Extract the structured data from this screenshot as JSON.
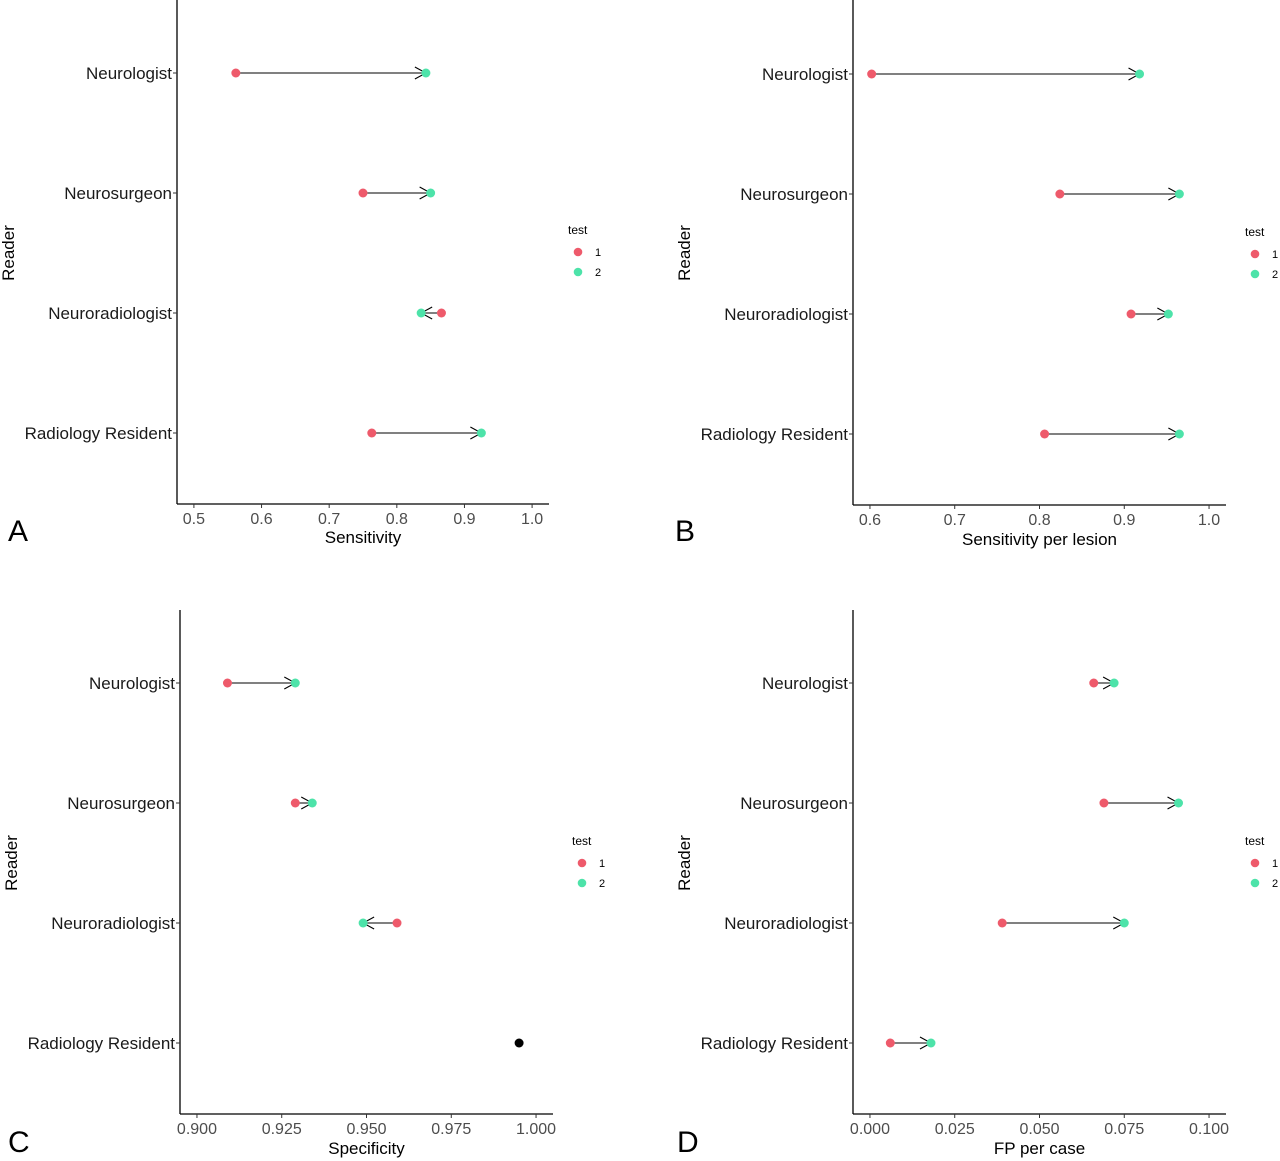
{
  "legend": {
    "title": "test",
    "items": [
      "1",
      "2"
    ]
  },
  "colors": {
    "test1": "#ee5a6b",
    "test2": "#4de3a9",
    "single": "#000000",
    "arrow": "#000000"
  },
  "chart_data": [
    {
      "panel": "A",
      "type": "scatter",
      "xlabel": "Sensitivity",
      "ylabel": "Reader",
      "xlim": [
        0.475,
        1.025
      ],
      "xticks": [
        0.5,
        0.6,
        0.7,
        0.8,
        0.9,
        1.0
      ],
      "xtick_labels": [
        "0.5",
        "0.6",
        "0.7",
        "0.8",
        "0.9",
        "1.0"
      ],
      "categories": [
        "Neurologist",
        "Neurosurgeon",
        "Neuroradiologist",
        "Radiology Resident"
      ],
      "series": [
        {
          "name": "1",
          "values": [
            0.562,
            0.75,
            0.866,
            0.763
          ]
        },
        {
          "name": "2",
          "values": [
            0.843,
            0.85,
            0.836,
            0.925
          ]
        }
      ]
    },
    {
      "panel": "B",
      "type": "scatter",
      "xlabel": "Sensitivity per lesion",
      "ylabel": "Reader",
      "xlim": [
        0.58,
        1.02
      ],
      "xticks": [
        0.6,
        0.7,
        0.8,
        0.9,
        1.0
      ],
      "xtick_labels": [
        "0.6",
        "0.7",
        "0.8",
        "0.9",
        "1.0"
      ],
      "categories": [
        "Neurologist",
        "Neurosurgeon",
        "Neuroradiologist",
        "Radiology Resident"
      ],
      "series": [
        {
          "name": "1",
          "values": [
            0.602,
            0.824,
            0.908,
            0.806
          ]
        },
        {
          "name": "2",
          "values": [
            0.918,
            0.965,
            0.952,
            0.965
          ]
        }
      ]
    },
    {
      "panel": "C",
      "type": "scatter",
      "xlabel": "Specificity",
      "ylabel": "Reader",
      "xlim": [
        0.895,
        1.005
      ],
      "xticks": [
        0.9,
        0.925,
        0.95,
        0.975,
        1.0
      ],
      "xtick_labels": [
        "0.900",
        "0.925",
        "0.950",
        "0.975",
        "1.000"
      ],
      "categories": [
        "Neurologist",
        "Neurosurgeon",
        "Neuroradiologist",
        "Radiology Resident"
      ],
      "series": [
        {
          "name": "1",
          "values": [
            0.909,
            0.929,
            0.959,
            0.995
          ]
        },
        {
          "name": "2",
          "values": [
            0.929,
            0.934,
            0.949,
            0.995
          ]
        }
      ]
    },
    {
      "panel": "D",
      "type": "scatter",
      "xlabel": "FP per case",
      "ylabel": "Reader",
      "xlim": [
        -0.005,
        0.105
      ],
      "xticks": [
        0.0,
        0.025,
        0.05,
        0.075,
        0.1
      ],
      "xtick_labels": [
        "0.000",
        "0.025",
        "0.050",
        "0.075",
        "0.100"
      ],
      "categories": [
        "Neurologist",
        "Neurosurgeon",
        "Neuroradiologist",
        "Radiology Resident"
      ],
      "series": [
        {
          "name": "1",
          "values": [
            0.066,
            0.069,
            0.039,
            0.006
          ]
        },
        {
          "name": "2",
          "values": [
            0.072,
            0.091,
            0.075,
            0.018
          ]
        }
      ]
    }
  ]
}
